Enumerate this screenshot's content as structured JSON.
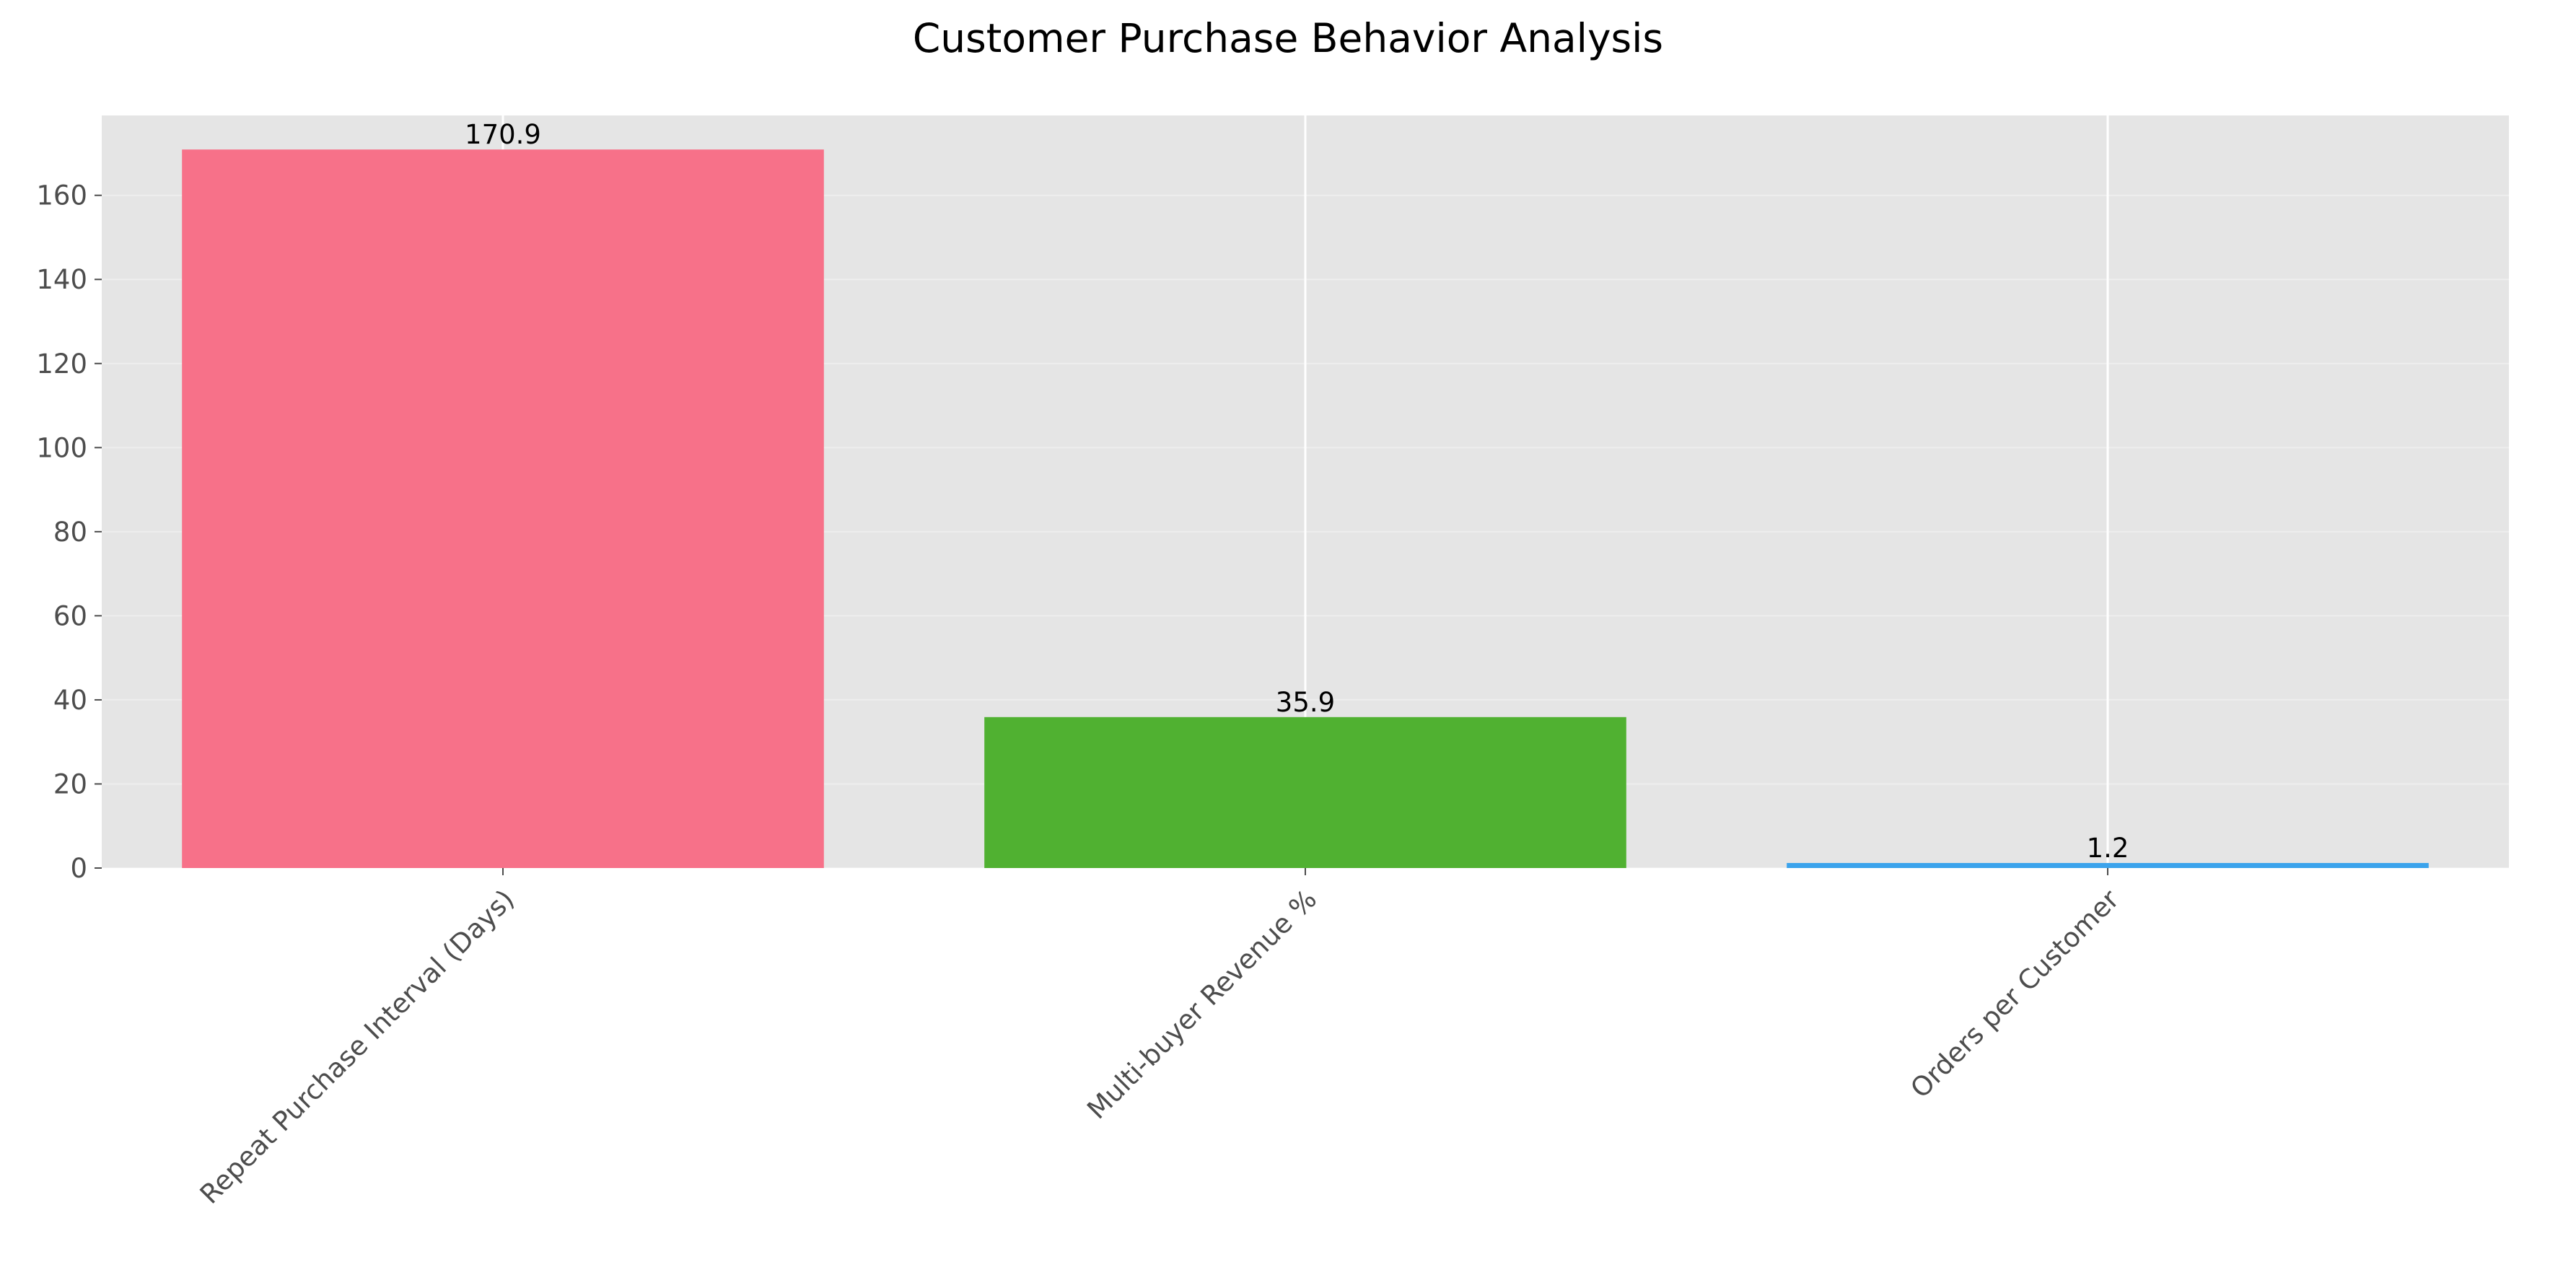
{
  "chart_data": {
    "type": "bar",
    "title": "Customer Purchase Behavior Analysis",
    "xlabel": "",
    "ylabel": "",
    "categories": [
      "Repeat Purchase Interval (Days)",
      "Multi-buyer Revenue %",
      "Orders per Customer"
    ],
    "values": [
      170.9,
      35.9,
      1.2
    ],
    "value_labels": [
      "170.9",
      "35.9",
      "1.2"
    ],
    "colors": [
      "#f77189",
      "#50b131",
      "#3ba3ec"
    ],
    "ylim": [
      0,
      179
    ],
    "yticks": [
      0,
      20,
      40,
      60,
      80,
      100,
      120,
      140,
      160
    ],
    "ytick_labels": [
      "0",
      "20",
      "40",
      "60",
      "80",
      "100",
      "120",
      "140",
      "160"
    ],
    "grid": true,
    "style": {
      "plot_background": "#e5e5e5",
      "grid_color": "#ffffff",
      "tick_label_color": "#4d4d4d"
    }
  }
}
